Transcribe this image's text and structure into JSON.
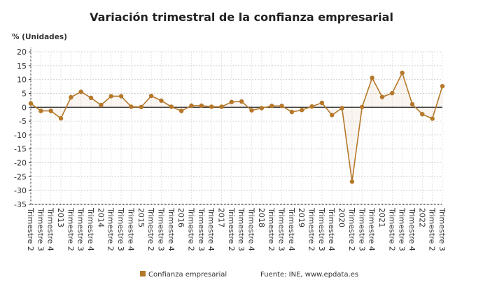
{
  "chart_data": {
    "type": "line",
    "title": "Variación trimestral de la confianza empresarial",
    "ylabel": "% (Unidades)",
    "xlabel": "",
    "ylim": [
      -35,
      20
    ],
    "yticks": [
      20,
      15,
      10,
      5,
      0,
      -5,
      -10,
      -15,
      -20,
      -25,
      -30,
      -35
    ],
    "grid": true,
    "legend_placement": "bottom",
    "categories": [
      "Trimestre 2",
      "Trimestre 3",
      "Trimestre 4",
      "2013",
      "Trimestre 2",
      "Trimestre 3",
      "Trimestre 4",
      "2014",
      "Trimestre 2",
      "Trimestre 3",
      "Trimestre 4",
      "2015",
      "Trimestre 2",
      "Trimestre 3",
      "Trimestre 4",
      "2016",
      "Trimestre 2",
      "Trimestre 3",
      "Trimestre 4",
      "2017",
      "Trimestre 2",
      "Trimestre 3",
      "Trimestre 4",
      "2018",
      "Trimestre 2",
      "Trimestre 3",
      "Trimestre 4",
      "2019",
      "Trimestre 2",
      "Trimestre 3",
      "Trimestre 4",
      "2020",
      "Trimestre 2",
      "Trimestre 3",
      "Trimestre 4",
      "2021",
      "Trimestre 2",
      "Trimestre 3",
      "Trimestre 4",
      "2022",
      "Trimestre 2",
      "Trimestre 3"
    ],
    "series": [
      {
        "name": "Confianza empresarial",
        "color": "#b5782a",
        "values": [
          1.4,
          -1.3,
          -1.3,
          -4.0,
          3.6,
          5.6,
          3.4,
          0.8,
          4.0,
          4.0,
          0.2,
          0.1,
          4.1,
          2.4,
          0.2,
          -1.3,
          0.6,
          0.6,
          0.2,
          0.2,
          1.9,
          2.1,
          -1.1,
          -0.3,
          0.5,
          0.5,
          -1.7,
          -1.0,
          0.3,
          1.6,
          -2.8,
          -0.3,
          -26.8,
          0.1,
          10.6,
          3.7,
          5.1,
          12.4,
          1.1,
          -2.5,
          -4.1,
          7.6
        ]
      }
    ],
    "source": "Fuente: INE, www.epdata.es"
  }
}
